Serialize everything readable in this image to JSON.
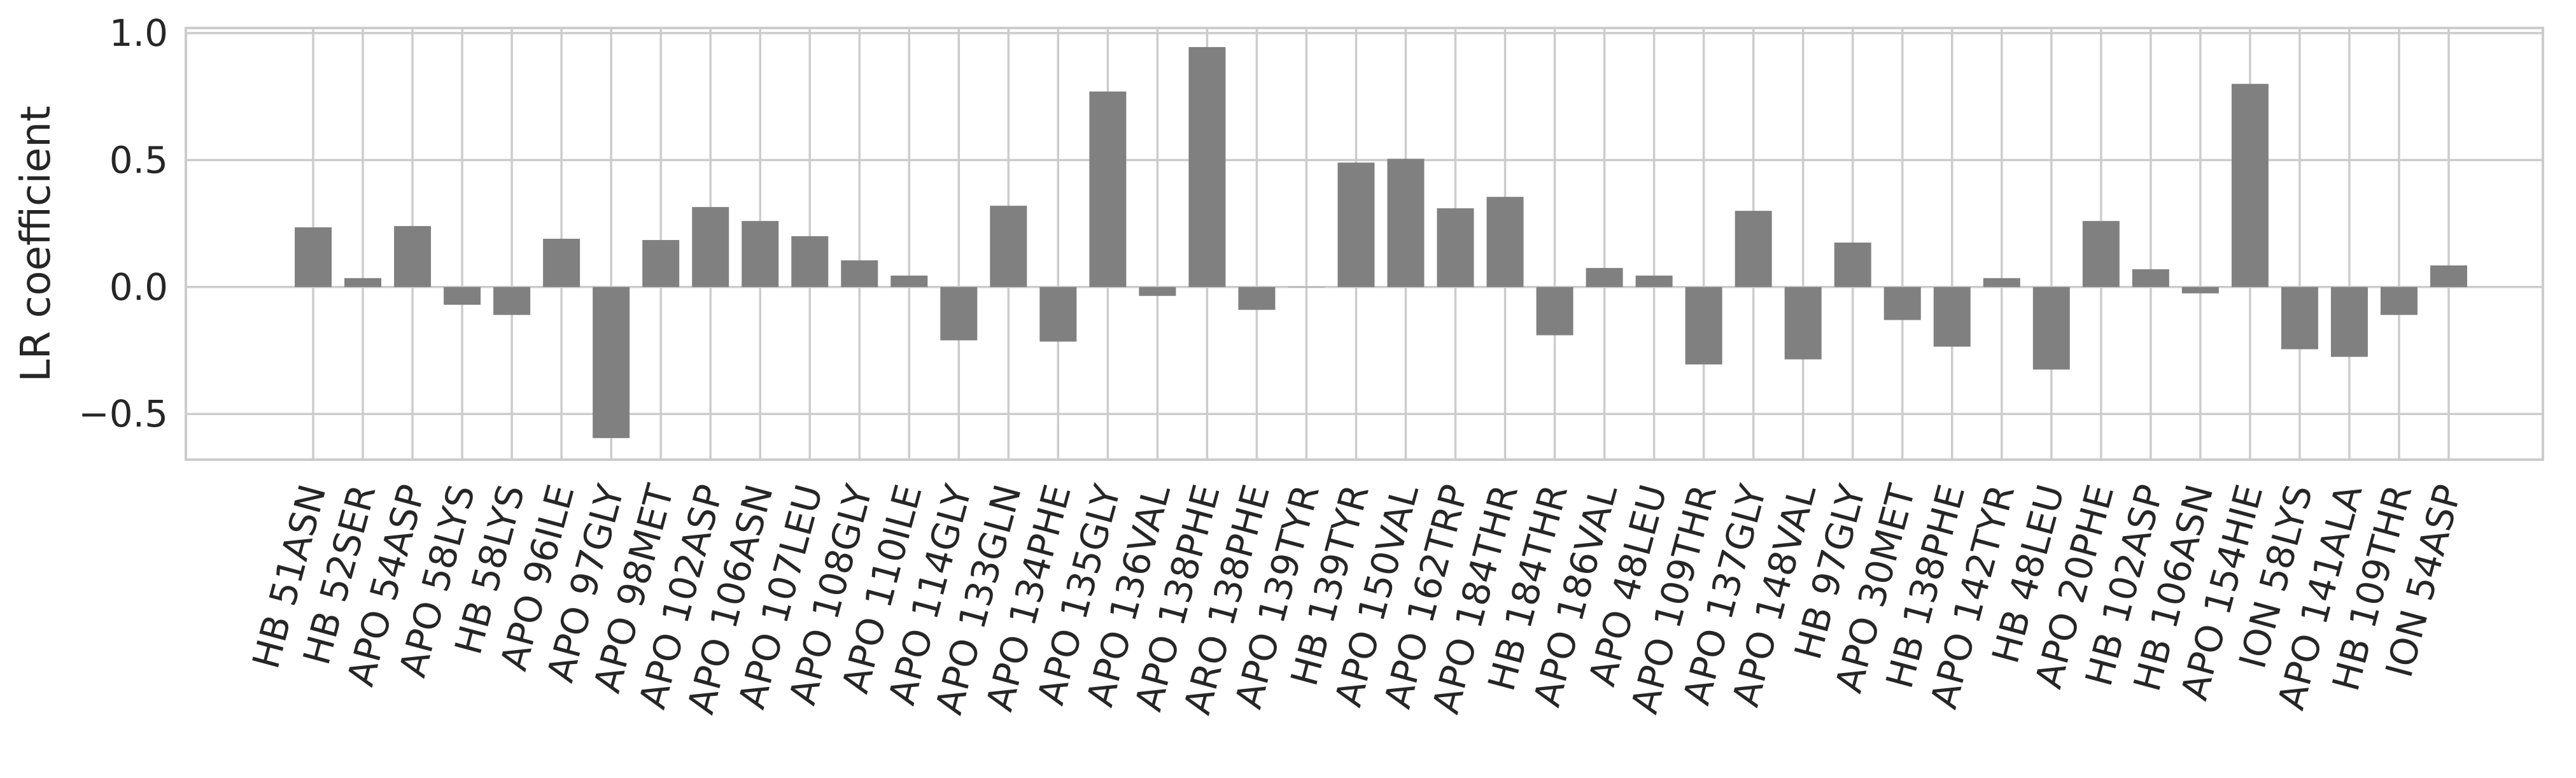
{
  "chart_data": {
    "type": "bar",
    "title": "",
    "xlabel": "",
    "ylabel": "LR coefficient",
    "ylim": [
      -0.68,
      1.02
    ],
    "yticks": [
      -0.5,
      0.0,
      0.5,
      1.0
    ],
    "ytick_labels": [
      "−0.5",
      "0.0",
      "0.5",
      "1.0"
    ],
    "grid": true,
    "categories": [
      "HB 51ASN",
      "HB 52SER",
      "APO 54ASP",
      "APO 58LYS",
      "HB 58LYS",
      "APO 96ILE",
      "APO 97GLY",
      "APO 98MET",
      "APO 102ASP",
      "APO 106ASN",
      "APO 107LEU",
      "APO 108GLY",
      "APO 110ILE",
      "APO 114GLY",
      "APO 133GLN",
      "APO 134PHE",
      "APO 135GLY",
      "APO 136VAL",
      "APO 138PHE",
      "ARO 138PHE",
      "APO 139TYR",
      "HB 139TYR",
      "APO 150VAL",
      "APO 162TRP",
      "APO 184THR",
      "HB 184THR",
      "APO 186VAL",
      "APO 48LEU",
      "APO 109THR",
      "APO 137GLY",
      "APO 148VAL",
      "HB 97GLY",
      "APO 30MET",
      "HB 138PHE",
      "APO 142TYR",
      "HB 48LEU",
      "APO 20PHE",
      "HB 102ASP",
      "HB 106ASN",
      "APO 154HIE",
      "ION 58LYS",
      "APO 141ALA",
      "HB 109THR",
      "ION 54ASP"
    ],
    "values": [
      0.235,
      0.035,
      0.24,
      -0.07,
      -0.11,
      0.19,
      -0.595,
      0.185,
      0.315,
      0.26,
      0.2,
      0.105,
      0.045,
      -0.21,
      0.32,
      -0.215,
      0.77,
      -0.035,
      0.945,
      -0.09,
      0.0,
      0.49,
      0.505,
      0.31,
      0.355,
      -0.19,
      0.075,
      0.045,
      -0.305,
      0.3,
      -0.285,
      0.175,
      -0.13,
      -0.235,
      0.035,
      -0.325,
      0.26,
      0.07,
      -0.025,
      0.8,
      -0.245,
      -0.275,
      -0.11,
      0.085
    ],
    "bar_color": "#808080",
    "grid_color": "#cccccc",
    "text_color": "#262626"
  }
}
